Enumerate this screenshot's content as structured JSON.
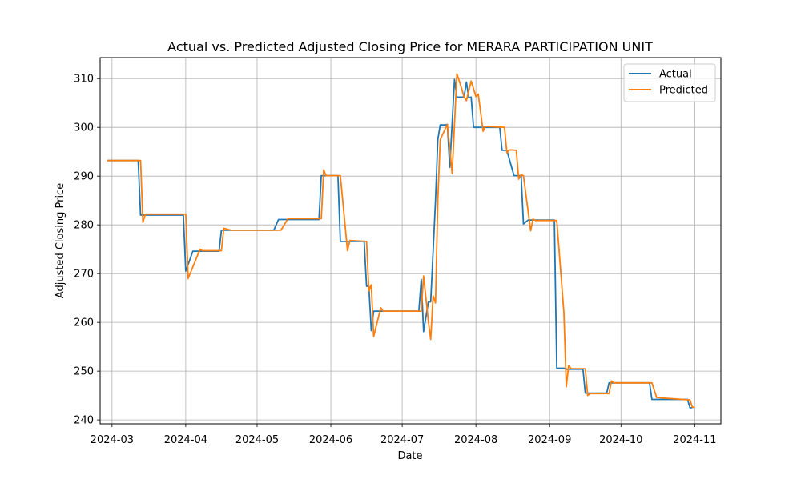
{
  "chart_data": {
    "type": "line",
    "title": "Actual vs. Predicted Adjusted Closing Price for MERARA PARTICIPATION UNIT",
    "xlabel": "Date",
    "ylabel": "Adjusted Closing Price",
    "xlim": [
      "2024-02-25",
      "2024-11-12"
    ],
    "ylim": [
      239.2,
      314.3
    ],
    "x_ticks": [
      "2024-03-01",
      "2024-04-01",
      "2024-05-01",
      "2024-06-01",
      "2024-07-01",
      "2024-08-01",
      "2024-09-01",
      "2024-10-01",
      "2024-11-01"
    ],
    "x_tick_labels": [
      "2024-03",
      "2024-04",
      "2024-05",
      "2024-06",
      "2024-07",
      "2024-08",
      "2024-09",
      "2024-10",
      "2024-11"
    ],
    "y_ticks": [
      240,
      250,
      260,
      270,
      280,
      290,
      300,
      310
    ],
    "grid": true,
    "legend_position": "top-right",
    "series": [
      {
        "name": "Actual",
        "color": "#1f77b4",
        "points": [
          [
            "2024-02-28",
            293.2
          ],
          [
            "2024-03-12",
            293.2
          ],
          [
            "2024-03-13",
            282.0
          ],
          [
            "2024-03-15",
            282.0
          ],
          [
            "2024-03-31",
            282.0
          ],
          [
            "2024-04-01",
            270.5
          ],
          [
            "2024-04-04",
            274.6
          ],
          [
            "2024-04-15",
            274.6
          ],
          [
            "2024-04-16",
            278.9
          ],
          [
            "2024-05-08",
            278.9
          ],
          [
            "2024-05-10",
            281.1
          ],
          [
            "2024-05-27",
            281.1
          ],
          [
            "2024-05-28",
            290.1
          ],
          [
            "2024-06-04",
            290.1
          ],
          [
            "2024-06-05",
            276.6
          ],
          [
            "2024-06-15",
            276.6
          ],
          [
            "2024-06-16",
            267.4
          ],
          [
            "2024-06-17",
            267.4
          ],
          [
            "2024-06-18",
            258.3
          ],
          [
            "2024-06-19",
            262.3
          ],
          [
            "2024-07-08",
            262.3
          ],
          [
            "2024-07-09",
            268.8
          ],
          [
            "2024-07-10",
            258.1
          ],
          [
            "2024-07-12",
            264.2
          ],
          [
            "2024-07-13",
            264.2
          ],
          [
            "2024-07-15",
            285.0
          ],
          [
            "2024-07-16",
            297.5
          ],
          [
            "2024-07-17",
            300.5
          ],
          [
            "2024-07-19",
            300.5
          ],
          [
            "2024-07-20",
            300.6
          ],
          [
            "2024-07-21",
            291.8
          ],
          [
            "2024-07-23",
            309.8
          ],
          [
            "2024-07-24",
            306.2
          ],
          [
            "2024-07-27",
            306.2
          ],
          [
            "2024-07-28",
            309.3
          ],
          [
            "2024-07-29",
            306.1
          ],
          [
            "2024-07-30",
            306.2
          ],
          [
            "2024-07-31",
            300.0
          ],
          [
            "2024-08-02",
            300.0
          ],
          [
            "2024-08-11",
            300.0
          ],
          [
            "2024-08-12",
            295.3
          ],
          [
            "2024-08-14",
            295.3
          ],
          [
            "2024-08-17",
            290.1
          ],
          [
            "2024-08-20",
            290.1
          ],
          [
            "2024-08-21",
            280.2
          ],
          [
            "2024-08-23",
            281.0
          ],
          [
            "2024-09-03",
            281.0
          ],
          [
            "2024-09-04",
            250.6
          ],
          [
            "2024-09-07",
            250.6
          ],
          [
            "2024-09-08",
            250.4
          ],
          [
            "2024-09-15",
            250.4
          ],
          [
            "2024-09-16",
            245.5
          ],
          [
            "2024-09-25",
            245.5
          ],
          [
            "2024-09-26",
            247.6
          ],
          [
            "2024-10-13",
            247.6
          ],
          [
            "2024-10-14",
            244.2
          ],
          [
            "2024-10-29",
            244.2
          ],
          [
            "2024-10-30",
            242.5
          ],
          [
            "2024-10-31",
            242.5
          ]
        ]
      },
      {
        "name": "Predicted",
        "color": "#ff7f0e",
        "points": [
          [
            "2024-02-28",
            293.2
          ],
          [
            "2024-03-13",
            293.2
          ],
          [
            "2024-03-14",
            280.5
          ],
          [
            "2024-03-15",
            282.2
          ],
          [
            "2024-04-01",
            282.2
          ],
          [
            "2024-04-02",
            269.0
          ],
          [
            "2024-04-07",
            275.0
          ],
          [
            "2024-04-08",
            274.7
          ],
          [
            "2024-04-16",
            274.7
          ],
          [
            "2024-04-17",
            279.3
          ],
          [
            "2024-04-20",
            278.9
          ],
          [
            "2024-05-11",
            278.9
          ],
          [
            "2024-05-14",
            281.3
          ],
          [
            "2024-05-28",
            281.3
          ],
          [
            "2024-05-29",
            291.3
          ],
          [
            "2024-05-30",
            290.1
          ],
          [
            "2024-06-05",
            290.1
          ],
          [
            "2024-06-08",
            274.7
          ],
          [
            "2024-06-09",
            276.8
          ],
          [
            "2024-06-16",
            276.6
          ],
          [
            "2024-06-17",
            266.4
          ],
          [
            "2024-06-18",
            267.7
          ],
          [
            "2024-06-19",
            257.1
          ],
          [
            "2024-06-22",
            263.0
          ],
          [
            "2024-06-23",
            262.3
          ],
          [
            "2024-07-09",
            262.3
          ],
          [
            "2024-07-10",
            269.5
          ],
          [
            "2024-07-12",
            260.2
          ],
          [
            "2024-07-13",
            256.5
          ],
          [
            "2024-07-14",
            265.4
          ],
          [
            "2024-07-15",
            264.0
          ],
          [
            "2024-07-16",
            285.1
          ],
          [
            "2024-07-17",
            297.5
          ],
          [
            "2024-07-20",
            300.6
          ],
          [
            "2024-07-22",
            290.5
          ],
          [
            "2024-07-24",
            311.0
          ],
          [
            "2024-07-26",
            308.0
          ],
          [
            "2024-07-27",
            306.2
          ],
          [
            "2024-07-28",
            305.5
          ],
          [
            "2024-07-30",
            309.5
          ],
          [
            "2024-08-01",
            306.3
          ],
          [
            "2024-08-02",
            306.8
          ],
          [
            "2024-08-03",
            303.0
          ],
          [
            "2024-08-04",
            299.2
          ],
          [
            "2024-08-05",
            300.2
          ],
          [
            "2024-08-13",
            300.0
          ],
          [
            "2024-08-14",
            294.8
          ],
          [
            "2024-08-15",
            295.4
          ],
          [
            "2024-08-18",
            295.3
          ],
          [
            "2024-08-19",
            289.4
          ],
          [
            "2024-08-20",
            290.3
          ],
          [
            "2024-08-21",
            290.1
          ],
          [
            "2024-08-24",
            278.8
          ],
          [
            "2024-08-25",
            281.2
          ],
          [
            "2024-08-26",
            280.9
          ],
          [
            "2024-09-04",
            280.9
          ],
          [
            "2024-09-07",
            262.0
          ],
          [
            "2024-09-08",
            246.8
          ],
          [
            "2024-09-09",
            251.2
          ],
          [
            "2024-09-10",
            250.5
          ],
          [
            "2024-09-16",
            250.5
          ],
          [
            "2024-09-17",
            245.0
          ],
          [
            "2024-09-18",
            245.4
          ],
          [
            "2024-09-26",
            245.4
          ],
          [
            "2024-09-27",
            248.0
          ],
          [
            "2024-09-28",
            247.6
          ],
          [
            "2024-10-14",
            247.6
          ],
          [
            "2024-10-16",
            244.6
          ],
          [
            "2024-10-30",
            244.1
          ],
          [
            "2024-10-31",
            242.6
          ],
          [
            "2024-11-01",
            242.6
          ]
        ]
      }
    ]
  }
}
